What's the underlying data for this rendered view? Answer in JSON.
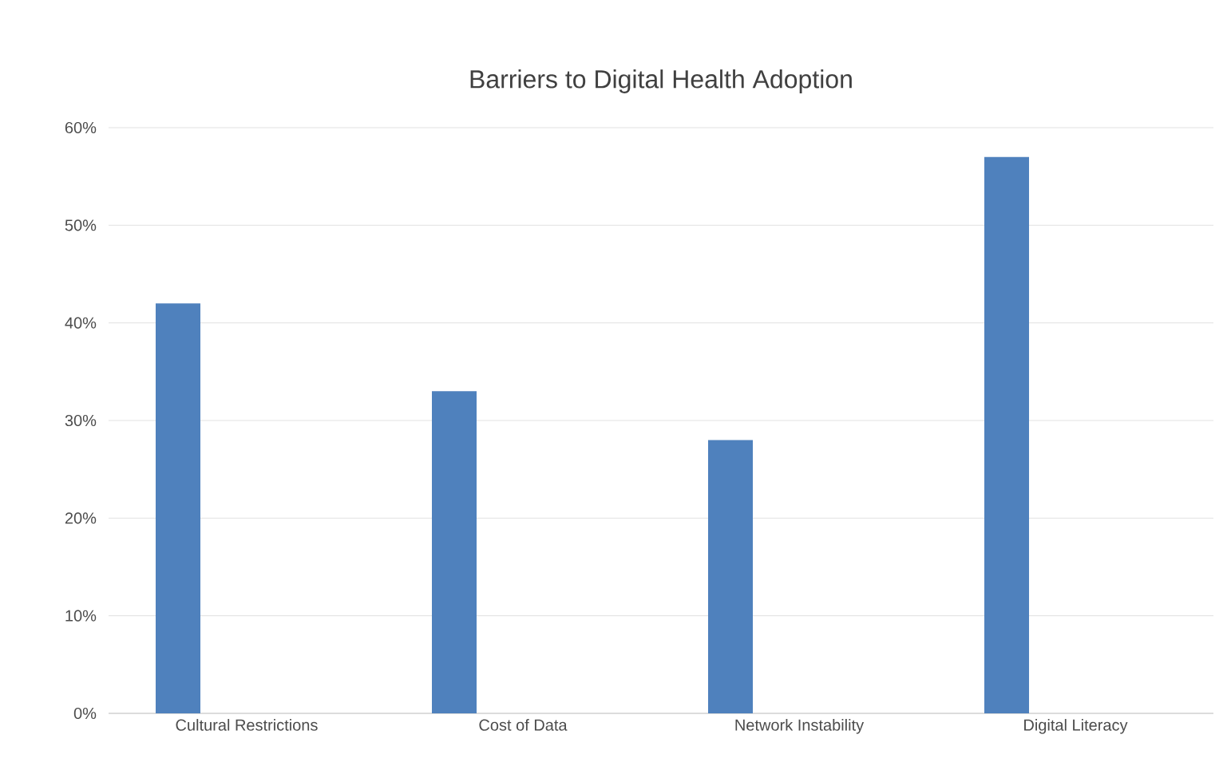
{
  "chart_data": {
    "type": "bar",
    "title": "Barriers to Digital Health Adoption",
    "categories": [
      "Cultural Restrictions",
      "Cost of Data",
      "Network Instability",
      "Digital Literacy"
    ],
    "values": [
      42,
      33,
      28,
      57
    ],
    "color": "#4f81bd",
    "ylim": [
      0,
      60
    ],
    "yticks": [
      {
        "value": 0,
        "label": "0%"
      },
      {
        "value": 10,
        "label": "10%"
      },
      {
        "value": 20,
        "label": "20%"
      },
      {
        "value": 30,
        "label": "30%"
      },
      {
        "value": 40,
        "label": "40%"
      },
      {
        "value": 50,
        "label": "50%"
      },
      {
        "value": 60,
        "label": "60%"
      }
    ],
    "grid": "y"
  }
}
